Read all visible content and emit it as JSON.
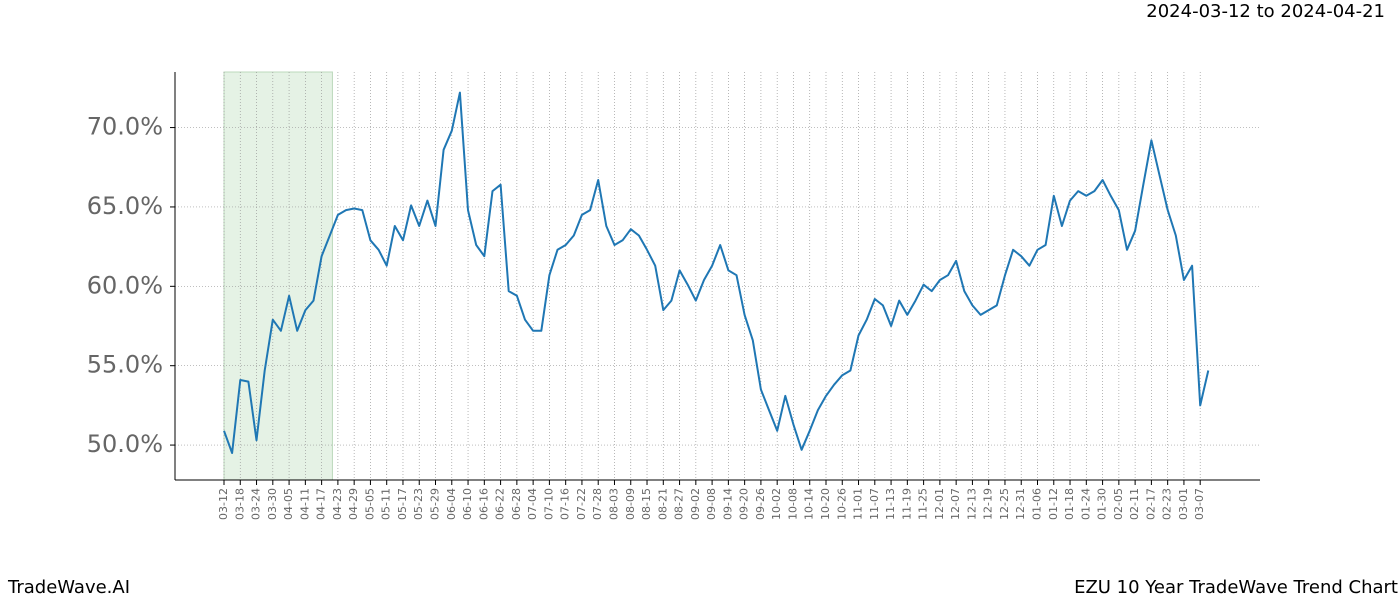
{
  "chart_data": {
    "type": "line",
    "subtitle": "2024-03-12 to 2024-04-21",
    "footer_left": "TradeWave.AI",
    "footer_right": "EZU 10 Year TradeWave Trend Chart",
    "categories": [
      "03-12",
      null,
      "03-18",
      null,
      "03-24",
      null,
      "03-30",
      null,
      "04-05",
      null,
      "04-11",
      null,
      "04-17",
      null,
      "04-23",
      null,
      "04-29",
      null,
      "05-05",
      null,
      "05-11",
      null,
      "05-17",
      null,
      "05-23",
      null,
      "05-29",
      null,
      "06-04",
      null,
      "06-10",
      null,
      "06-16",
      null,
      "06-22",
      null,
      "06-28",
      null,
      "07-04",
      null,
      "07-10",
      null,
      "07-16",
      null,
      "07-22",
      null,
      "07-28",
      null,
      "08-03",
      null,
      "08-09",
      null,
      "08-15",
      null,
      "08-21",
      null,
      "08-27",
      null,
      "09-02",
      null,
      "09-08",
      null,
      "09-14",
      null,
      "09-20",
      null,
      "09-26",
      null,
      "10-02",
      null,
      "10-08",
      null,
      "10-14",
      null,
      "10-20",
      null,
      "10-26",
      null,
      "11-01",
      null,
      "11-07",
      null,
      "11-13",
      null,
      "11-19",
      null,
      "11-25",
      null,
      "12-01",
      null,
      "12-07",
      null,
      "12-13",
      null,
      "12-19",
      null,
      "12-25",
      null,
      "12-31",
      null,
      "01-06",
      null,
      "01-12",
      null,
      "01-18",
      null,
      "01-24",
      null,
      "01-30",
      null,
      "02-05",
      null,
      "02-11",
      null,
      "02-17",
      null,
      "02-23",
      null,
      "03-01",
      null,
      "03-07",
      null
    ],
    "series": [
      {
        "name": "EZU",
        "color": "#1f77b4",
        "values": [
          50.9,
          49.5,
          54.1,
          54.0,
          50.3,
          54.7,
          57.9,
          57.2,
          59.4,
          57.2,
          58.5,
          59.1,
          61.9,
          63.2,
          64.5,
          64.8,
          64.9,
          64.8,
          62.9,
          62.3,
          61.3,
          63.8,
          62.9,
          65.1,
          63.8,
          65.4,
          63.8,
          68.6,
          69.8,
          72.2,
          64.8,
          62.6,
          61.9,
          66.0,
          66.4,
          59.7,
          59.4,
          57.9,
          57.2,
          57.2,
          60.7,
          62.3,
          62.6,
          63.2,
          64.5,
          64.8,
          66.7,
          63.8,
          62.6,
          62.9,
          63.6,
          63.2,
          62.3,
          61.3,
          58.5,
          59.1,
          61.0,
          60.1,
          59.1,
          60.4,
          61.3,
          62.6,
          61.0,
          60.7,
          58.2,
          56.6,
          53.5,
          52.2,
          50.9,
          53.1,
          51.3,
          49.7,
          50.9,
          52.2,
          53.1,
          53.8,
          54.4,
          54.7,
          56.9,
          57.9,
          59.2,
          58.8,
          57.5,
          59.1,
          58.2,
          59.1,
          60.1,
          59.7,
          60.4,
          60.7,
          61.6,
          59.7,
          58.8,
          58.2,
          58.5,
          58.8,
          60.7,
          62.3,
          61.9,
          61.3,
          62.3,
          62.6,
          65.7,
          63.8,
          65.4,
          66.0,
          65.7,
          66.0,
          66.7,
          65.7,
          64.8,
          62.3,
          63.5,
          66.4,
          69.2,
          67.0,
          64.8,
          63.2,
          60.4,
          61.3,
          52.5,
          54.7
        ]
      }
    ],
    "ylim": [
      47.8,
      73.5
    ],
    "yticks": [
      {
        "value": 50,
        "label": "50.0%"
      },
      {
        "value": 55,
        "label": "55.0%"
      },
      {
        "value": 60,
        "label": "60.0%"
      },
      {
        "value": 65,
        "label": "65.0%"
      },
      {
        "value": 70,
        "label": "70.0%"
      }
    ],
    "highlight_range": [
      0,
      13.33
    ],
    "highlight_color": "#e5f2e5",
    "grid": true
  }
}
